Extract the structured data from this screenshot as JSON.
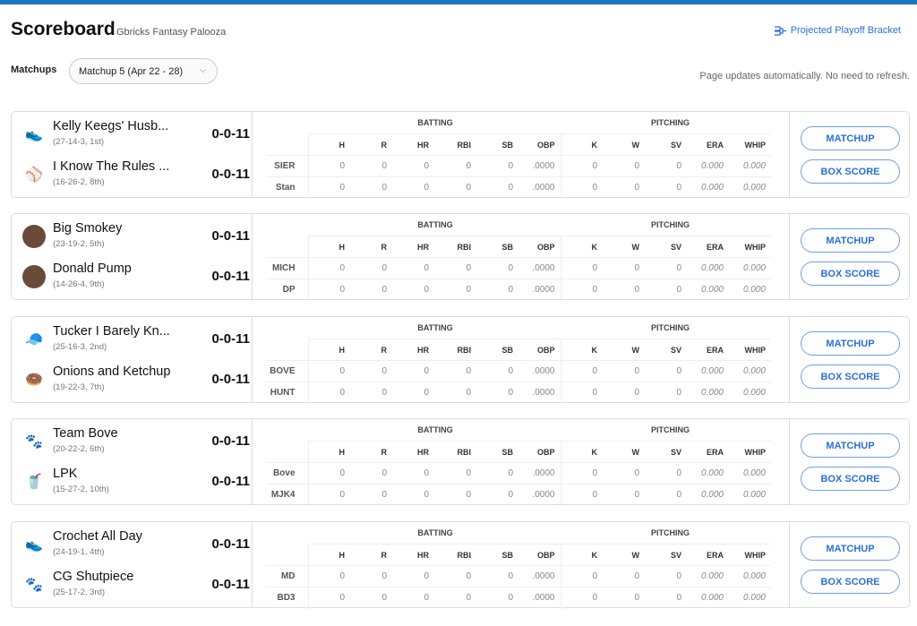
{
  "header": {
    "title": "Scoreboard",
    "subtitle": "Gbricks Fantasy Palooza",
    "bracket_link": "Projected Playoff Bracket",
    "matchups_label": "Matchups",
    "matchup_select": "Matchup 5 (Apr 22 - 28)",
    "note": "Page updates automatically. No need to refresh."
  },
  "labels": {
    "batting": "BATTING",
    "pitching": "PITCHING",
    "matchup_btn": "MATCHUP",
    "boxscore_btn": "BOX SCORE",
    "cols": [
      "H",
      "R",
      "HR",
      "RBI",
      "SB",
      "OBP",
      "K",
      "W",
      "SV",
      "ERA",
      "WHIP"
    ]
  },
  "matchups": [
    {
      "teams": [
        {
          "name": "Kelly Keegs' Husb...",
          "record": "(27-14-3, 1st)",
          "score": "0-0-11",
          "abbr": "SIER",
          "icon": "shoe-icon",
          "stats": [
            "0",
            "0",
            "0",
            "0",
            "0",
            ".0000",
            "0",
            "0",
            "0",
            "0.000",
            "0.000"
          ]
        },
        {
          "name": "I Know The Rules ...",
          "record": "(16-26-2, 8th)",
          "score": "0-0-11",
          "abbr": "Stan",
          "icon": "baseball-diamond-icon",
          "stats": [
            "0",
            "0",
            "0",
            "0",
            "0",
            ".0000",
            "0",
            "0",
            "0",
            "0.000",
            "0.000"
          ]
        }
      ]
    },
    {
      "teams": [
        {
          "name": "Big Smokey",
          "record": "(23-19-2, 5th)",
          "score": "0-0-11",
          "abbr": "MICH",
          "icon": "avatar-photo",
          "stats": [
            "0",
            "0",
            "0",
            "0",
            "0",
            ".0000",
            "0",
            "0",
            "0",
            "0.000",
            "0.000"
          ]
        },
        {
          "name": "Donald Pump",
          "record": "(14-26-4, 9th)",
          "score": "0-0-11",
          "abbr": "DP",
          "icon": "avatar-photo",
          "stats": [
            "0",
            "0",
            "0",
            "0",
            "0",
            ".0000",
            "0",
            "0",
            "0",
            "0.000",
            "0.000"
          ]
        }
      ]
    },
    {
      "teams": [
        {
          "name": "Tucker I Barely Kn...",
          "record": "(25-16-3, 2nd)",
          "score": "0-0-11",
          "abbr": "BOVE",
          "icon": "cap-icon",
          "stats": [
            "0",
            "0",
            "0",
            "0",
            "0",
            ".0000",
            "0",
            "0",
            "0",
            "0.000",
            "0.000"
          ]
        },
        {
          "name": "Onions and Ketchup",
          "record": "(19-22-3, 7th)",
          "score": "0-0-11",
          "abbr": "HUNT",
          "icon": "food-icon",
          "stats": [
            "0",
            "0",
            "0",
            "0",
            "0",
            ".0000",
            "0",
            "0",
            "0",
            "0.000",
            "0.000"
          ]
        }
      ]
    },
    {
      "teams": [
        {
          "name": "Team Bove",
          "record": "(20-22-2, 6th)",
          "score": "0-0-11",
          "abbr": "Bove",
          "icon": "mascot-icon",
          "stats": [
            "0",
            "0",
            "0",
            "0",
            "0",
            ".0000",
            "0",
            "0",
            "0",
            "0.000",
            "0.000"
          ]
        },
        {
          "name": "LPK",
          "record": "(15-27-2, 10th)",
          "score": "0-0-11",
          "abbr": "MJK4",
          "icon": "drink-icon",
          "stats": [
            "0",
            "0",
            "0",
            "0",
            "0",
            ".0000",
            "0",
            "0",
            "0",
            "0.000",
            "0.000"
          ]
        }
      ]
    },
    {
      "teams": [
        {
          "name": "Crochet All Day",
          "record": "(24-19-1, 4th)",
          "score": "0-0-11",
          "abbr": "MD",
          "icon": "shoe-icon",
          "stats": [
            "0",
            "0",
            "0",
            "0",
            "0",
            ".0000",
            "0",
            "0",
            "0",
            "0.000",
            "0.000"
          ]
        },
        {
          "name": "CG Shutpiece",
          "record": "(25-17-2, 3rd)",
          "score": "0-0-11",
          "abbr": "BD3",
          "icon": "mascot-icon",
          "stats": [
            "0",
            "0",
            "0",
            "0",
            "0",
            ".0000",
            "0",
            "0",
            "0",
            "0.000",
            "0.000"
          ]
        }
      ]
    }
  ]
}
